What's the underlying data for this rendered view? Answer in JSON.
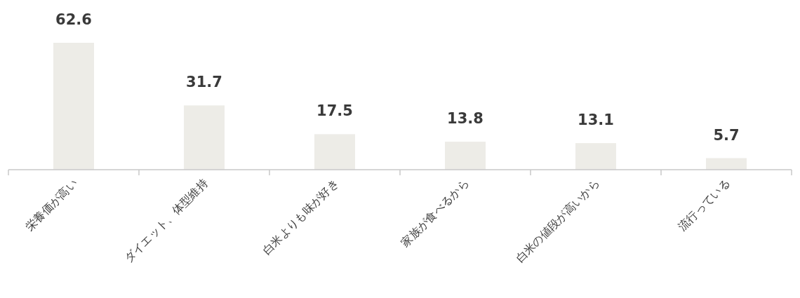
{
  "chart_data": {
    "type": "bar",
    "categories": [
      "栄養価が高い",
      "ダイエット、体型維持",
      "白米よりも味が好き",
      "家族が食べるから",
      "白米の値段が高いから",
      "流行っている"
    ],
    "values": [
      62.6,
      31.7,
      17.5,
      13.8,
      13.1,
      5.7
    ],
    "color": "#edece7",
    "data_labels": true
  }
}
